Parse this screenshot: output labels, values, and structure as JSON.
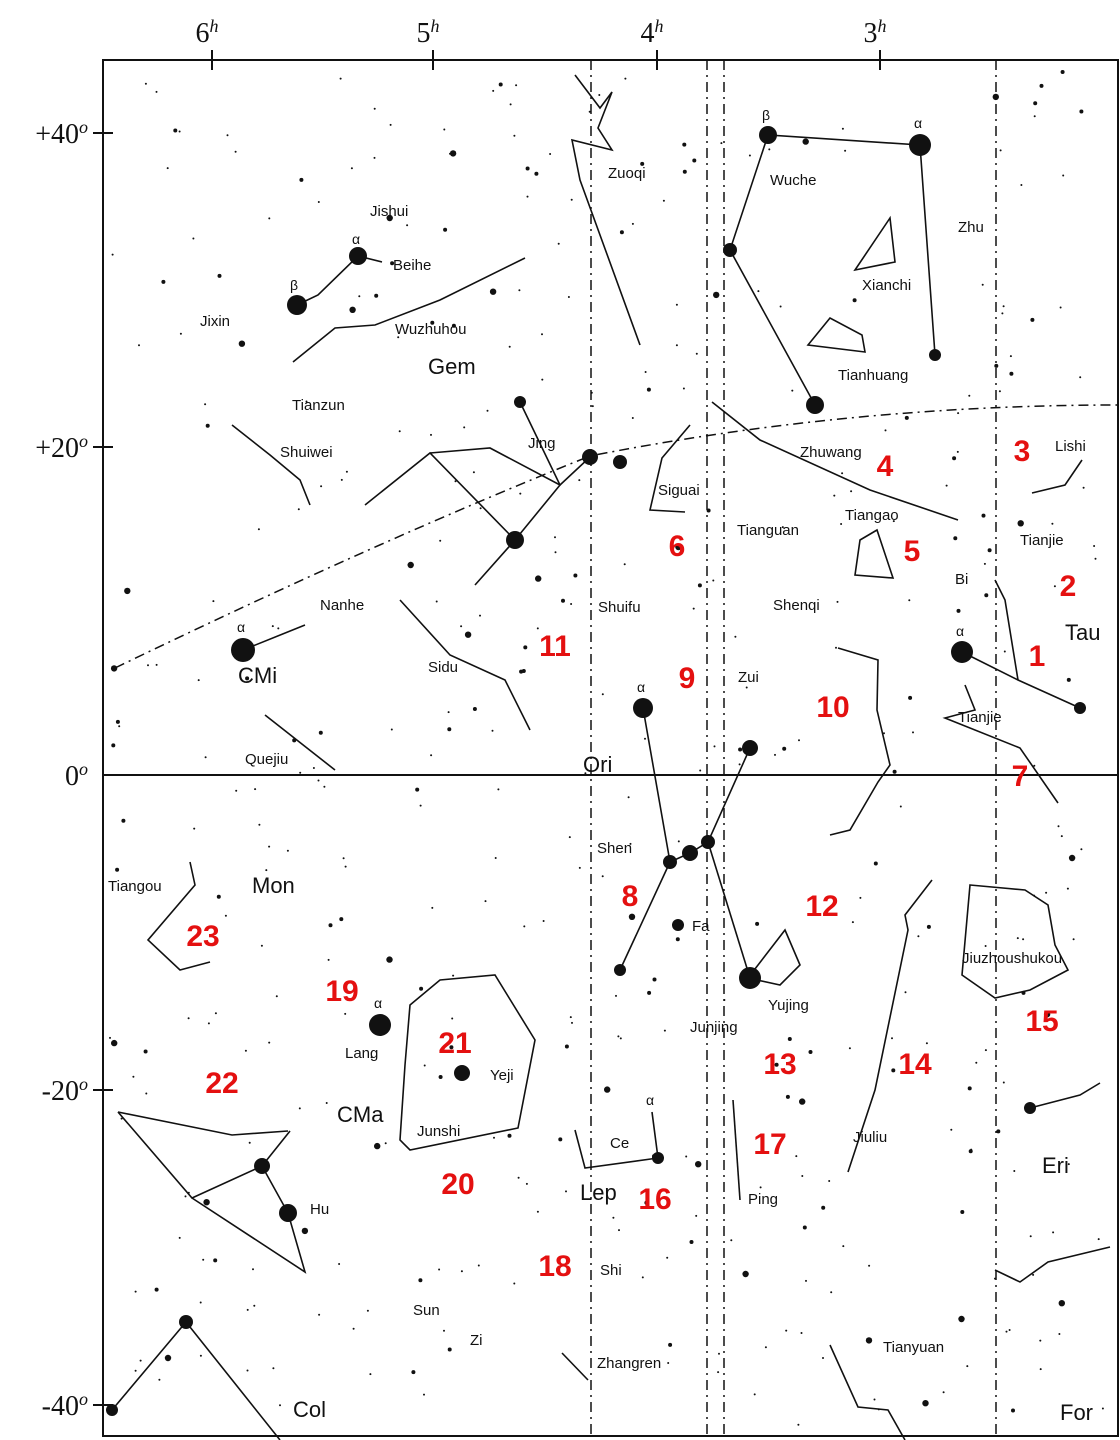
{
  "ra_labels": [
    {
      "hour": "6",
      "unit": "h"
    },
    {
      "hour": "5",
      "unit": "h"
    },
    {
      "hour": "4",
      "unit": "h"
    },
    {
      "hour": "3",
      "unit": "h"
    }
  ],
  "dec_labels": [
    {
      "deg": "+40",
      "unit": "o"
    },
    {
      "deg": "+20",
      "unit": "o"
    },
    {
      "deg": "0",
      "unit": "o"
    },
    {
      "deg": "-20",
      "unit": "o"
    },
    {
      "deg": "-40",
      "unit": "o"
    }
  ],
  "names": [
    "Zuoqi",
    "Wuche",
    "Zhu",
    "Jishui",
    "Beihe",
    "Xianchi",
    "Jixin",
    "Wuzhuhou",
    "Gem",
    "Tianhuang",
    "Tianzun",
    "Shuiwei",
    "Jing",
    "Zhuwang",
    "Lishi",
    "Siguai",
    "Tianguan",
    "Tiangao",
    "Tianjie",
    "Bi",
    "Shuifu",
    "Nanhe",
    "Shenqi",
    "Tau",
    "CMi",
    "Sidu",
    "Zui",
    "Tianjie",
    "Quejiu",
    "Ori",
    "Shen",
    "Mon",
    "Tiangou",
    "Fa",
    "Jiuzhoushukou",
    "Yujing",
    "Lang",
    "Junjing",
    "Yeji",
    "CMa",
    "Junshi",
    "Ce",
    "Eri",
    "Jiuliu",
    "Lep",
    "Hu",
    "Ping",
    "Shi",
    "Sun",
    "Zi",
    "Zhangren",
    "Tianyuan",
    "Col",
    "For"
  ],
  "star_letters": [
    "α",
    "β",
    "α",
    "α",
    "α",
    "β",
    "α",
    "α",
    "α"
  ],
  "numbers": [
    1,
    2,
    3,
    4,
    5,
    6,
    7,
    8,
    9,
    10,
    11,
    12,
    13,
    14,
    15,
    16,
    17,
    18,
    19,
    20,
    21,
    22,
    23
  ]
}
